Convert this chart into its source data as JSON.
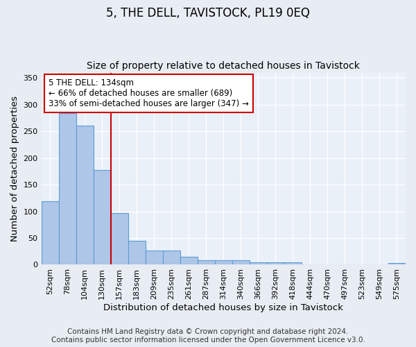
{
  "title": "5, THE DELL, TAVISTOCK, PL19 0EQ",
  "subtitle": "Size of property relative to detached houses in Tavistock",
  "xlabel": "Distribution of detached houses by size in Tavistock",
  "ylabel": "Number of detached properties",
  "categories": [
    "52sqm",
    "78sqm",
    "104sqm",
    "130sqm",
    "157sqm",
    "183sqm",
    "209sqm",
    "235sqm",
    "261sqm",
    "287sqm",
    "314sqm",
    "340sqm",
    "366sqm",
    "392sqm",
    "418sqm",
    "444sqm",
    "470sqm",
    "497sqm",
    "523sqm",
    "549sqm",
    "575sqm"
  ],
  "values": [
    119,
    284,
    260,
    177,
    97,
    45,
    27,
    27,
    15,
    8,
    8,
    8,
    5,
    4,
    4,
    0,
    0,
    0,
    0,
    0,
    3
  ],
  "bar_color": "#aec6e8",
  "bar_edge_color": "#5b9bd5",
  "vline_color": "#cc0000",
  "vline_xindex": 3,
  "annotation_text": "5 THE DELL: 134sqm\n← 66% of detached houses are smaller (689)\n33% of semi-detached houses are larger (347) →",
  "annotation_box_facecolor": "#ffffff",
  "annotation_box_edgecolor": "#cc0000",
  "ylim": [
    0,
    360
  ],
  "yticks": [
    0,
    50,
    100,
    150,
    200,
    250,
    300,
    350
  ],
  "footnote": "Contains HM Land Registry data © Crown copyright and database right 2024.\nContains public sector information licensed under the Open Government Licence v3.0.",
  "fig_bg_color": "#e8edf4",
  "plot_bg_color": "#eaf0f8",
  "grid_color": "#ffffff",
  "title_fontsize": 12,
  "subtitle_fontsize": 10,
  "axis_label_fontsize": 9.5,
  "tick_fontsize": 8,
  "footnote_fontsize": 7.5,
  "annotation_fontsize": 8.5
}
